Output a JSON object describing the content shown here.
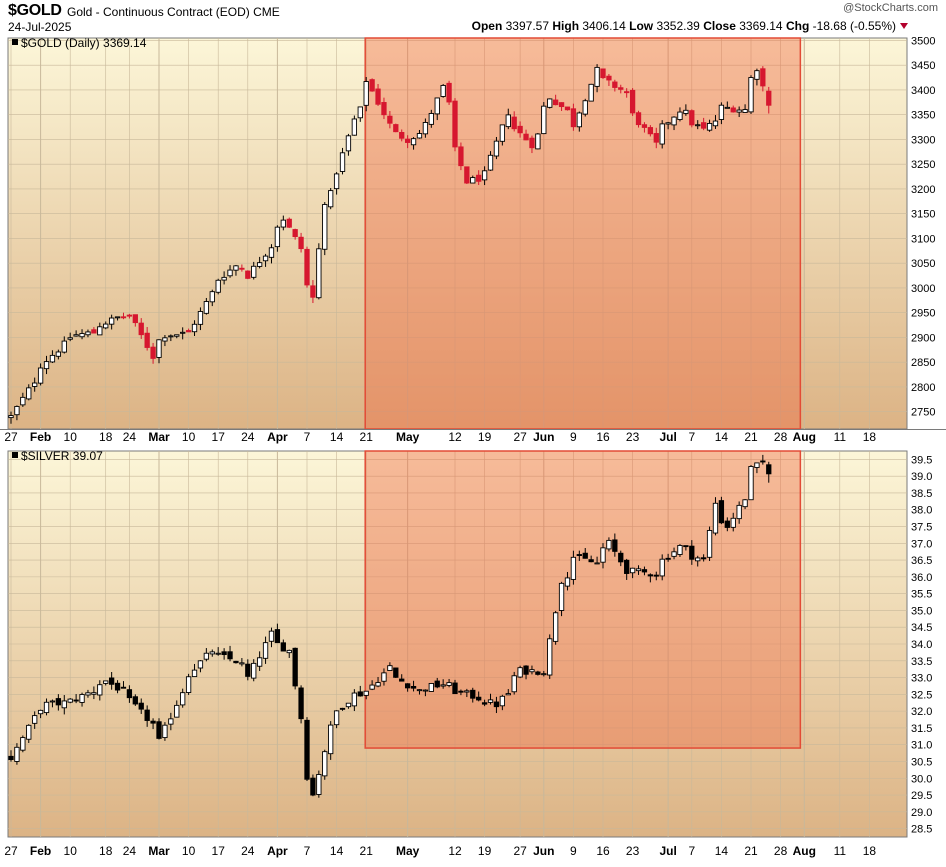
{
  "header": {
    "symbol": "$GOLD",
    "instrument": "Gold - Continuous Contract (EOD) CME",
    "date": "24-Jul-2025",
    "open_label": "Open",
    "open": "3397.57",
    "high_label": "High",
    "high": "3406.14",
    "low_label": "Low",
    "low": "3352.39",
    "close_label": "Close",
    "close": "3369.14",
    "chg_label": "Chg",
    "chg": "-18.68 (-0.55%)",
    "watermark": "@StockCharts.com"
  },
  "colors": {
    "panel_top": "#fcf6d8",
    "panel_bottom": "#dcb385",
    "highlight_fill": "#ee6a43",
    "highlight_stroke": "#e24b36",
    "up": "#000000",
    "down_gold": "#d6172f",
    "down_silver": "#000000",
    "grid": "#c8b89a"
  },
  "chart_data": [
    {
      "type": "candlestick",
      "name": "gold",
      "legend": "$GOLD (Daily) 3369.14",
      "y_ticks": [
        2750,
        2800,
        2850,
        2900,
        2950,
        3000,
        3050,
        3100,
        3150,
        3200,
        3250,
        3300,
        3350,
        3400,
        3450,
        3500
      ],
      "ylim": [
        2715,
        3505
      ],
      "x_tick_labels": [
        "27",
        "Feb",
        "10",
        "18",
        "24",
        "Mar",
        "10",
        "17",
        "24",
        "Apr",
        "7",
        "14",
        "21",
        "May",
        "12",
        "19",
        "27",
        "Jun",
        "9",
        "16",
        "23",
        "Jul",
        "7",
        "14",
        "21",
        "28",
        "Aug",
        "11",
        "18"
      ],
      "x_month_labels": [
        "Feb",
        "Mar",
        "Apr",
        "May",
        "Jun",
        "Jul",
        "Aug"
      ],
      "x_start": "2025-01-27",
      "close_path": [
        [
          "2025-01-27",
          2740
        ],
        [
          "2025-01-31",
          2812
        ],
        [
          "2025-02-07",
          2886
        ],
        [
          "2025-02-11",
          2905
        ],
        [
          "2025-02-14",
          2910
        ],
        [
          "2025-02-20",
          2940
        ],
        [
          "2025-02-24",
          2945
        ],
        [
          "2025-02-28",
          2862
        ],
        [
          "2025-03-04",
          2905
        ],
        [
          "2025-03-10",
          2910
        ],
        [
          "2025-03-14",
          2990
        ],
        [
          "2025-03-20",
          3045
        ],
        [
          "2025-03-24",
          3025
        ],
        [
          "2025-03-28",
          3085
        ],
        [
          "2025-04-01",
          3140
        ],
        [
          "2025-04-04",
          3080
        ],
        [
          "2025-04-08",
          2980
        ],
        [
          "2025-04-10",
          3175
        ],
        [
          "2025-04-14",
          3235
        ],
        [
          "2025-04-17",
          3340
        ],
        [
          "2025-04-21",
          3420
        ],
        [
          "2025-04-25",
          3330
        ],
        [
          "2025-04-30",
          3300
        ],
        [
          "2025-05-05",
          3330
        ],
        [
          "2025-05-08",
          3405
        ],
        [
          "2025-05-14",
          3215
        ],
        [
          "2025-05-19",
          3230
        ],
        [
          "2025-05-23",
          3355
        ],
        [
          "2025-05-29",
          3290
        ],
        [
          "2025-06-03",
          3385
        ],
        [
          "2025-06-09",
          3330
        ],
        [
          "2025-06-13",
          3440
        ],
        [
          "2025-06-20",
          3395
        ],
        [
          "2025-06-27",
          3290
        ],
        [
          "2025-07-03",
          3360
        ],
        [
          "2025-07-09",
          3320
        ],
        [
          "2025-07-14",
          3365
        ],
        [
          "2025-07-18",
          3360
        ],
        [
          "2025-07-22",
          3445
        ],
        [
          "2025-07-24",
          3369
        ]
      ],
      "last_bar": {
        "date": "2025-07-24",
        "open": 3397.57,
        "high": 3406.14,
        "low": 3352.39,
        "close": 3369.14
      },
      "highlight": {
        "from": "2025-04-21",
        "to": "2025-07-31",
        "y_from": 2715,
        "y_to": 3505
      }
    },
    {
      "type": "candlestick",
      "name": "silver",
      "legend": "$SILVER 39.07",
      "y_ticks": [
        28.5,
        29.0,
        29.5,
        30.0,
        30.5,
        31.0,
        31.5,
        32.0,
        32.5,
        33.0,
        33.5,
        34.0,
        34.5,
        35.0,
        35.5,
        36.0,
        36.5,
        37.0,
        37.5,
        38.0,
        38.5,
        39.0,
        39.5
      ],
      "ylim": [
        28.25,
        39.75
      ],
      "x_tick_labels": [
        "27",
        "Feb",
        "10",
        "18",
        "24",
        "Mar",
        "10",
        "17",
        "24",
        "Apr",
        "7",
        "14",
        "21",
        "May",
        "12",
        "19",
        "27",
        "Jun",
        "9",
        "16",
        "23",
        "Jul",
        "7",
        "14",
        "21",
        "28",
        "Aug",
        "11",
        "18"
      ],
      "x_month_labels": [
        "Feb",
        "Mar",
        "Apr",
        "May",
        "Jun",
        "Jul",
        "Aug"
      ],
      "x_start": "2025-01-27",
      "close_path": [
        [
          "2025-01-27",
          30.6
        ],
        [
          "2025-01-31",
          31.8
        ],
        [
          "2025-02-04",
          32.2
        ],
        [
          "2025-02-10",
          32.3
        ],
        [
          "2025-02-18",
          32.9
        ],
        [
          "2025-02-24",
          32.3
        ],
        [
          "2025-03-03",
          31.1
        ],
        [
          "2025-03-07",
          32.6
        ],
        [
          "2025-03-14",
          33.8
        ],
        [
          "2025-03-20",
          33.5
        ],
        [
          "2025-03-24",
          33.0
        ],
        [
          "2025-03-28",
          34.3
        ],
        [
          "2025-04-02",
          33.8
        ],
        [
          "2025-04-04",
          31.8
        ],
        [
          "2025-04-08",
          29.5
        ],
        [
          "2025-04-11",
          31.5
        ],
        [
          "2025-04-17",
          32.5
        ],
        [
          "2025-04-21",
          32.6
        ],
        [
          "2025-04-25",
          33.3
        ],
        [
          "2025-05-02",
          32.6
        ],
        [
          "2025-05-08",
          32.8
        ],
        [
          "2025-05-16",
          32.4
        ],
        [
          "2025-05-21",
          32.2
        ],
        [
          "2025-05-27",
          33.2
        ],
        [
          "2025-06-02",
          33.2
        ],
        [
          "2025-06-05",
          35.9
        ],
        [
          "2025-06-09",
          36.6
        ],
        [
          "2025-06-13",
          36.4
        ],
        [
          "2025-06-17",
          37.0
        ],
        [
          "2025-06-20",
          36.2
        ],
        [
          "2025-06-27",
          36.1
        ],
        [
          "2025-07-03",
          36.9
        ],
        [
          "2025-07-09",
          36.5
        ],
        [
          "2025-07-11",
          38.2
        ],
        [
          "2025-07-15",
          37.5
        ],
        [
          "2025-07-21",
          39.2
        ],
        [
          "2025-07-23",
          39.4
        ],
        [
          "2025-07-24",
          39.07
        ]
      ],
      "highlight": {
        "from": "2025-04-21",
        "to": "2025-07-31",
        "y_from": 30.9,
        "y_to": 39.75
      }
    }
  ]
}
